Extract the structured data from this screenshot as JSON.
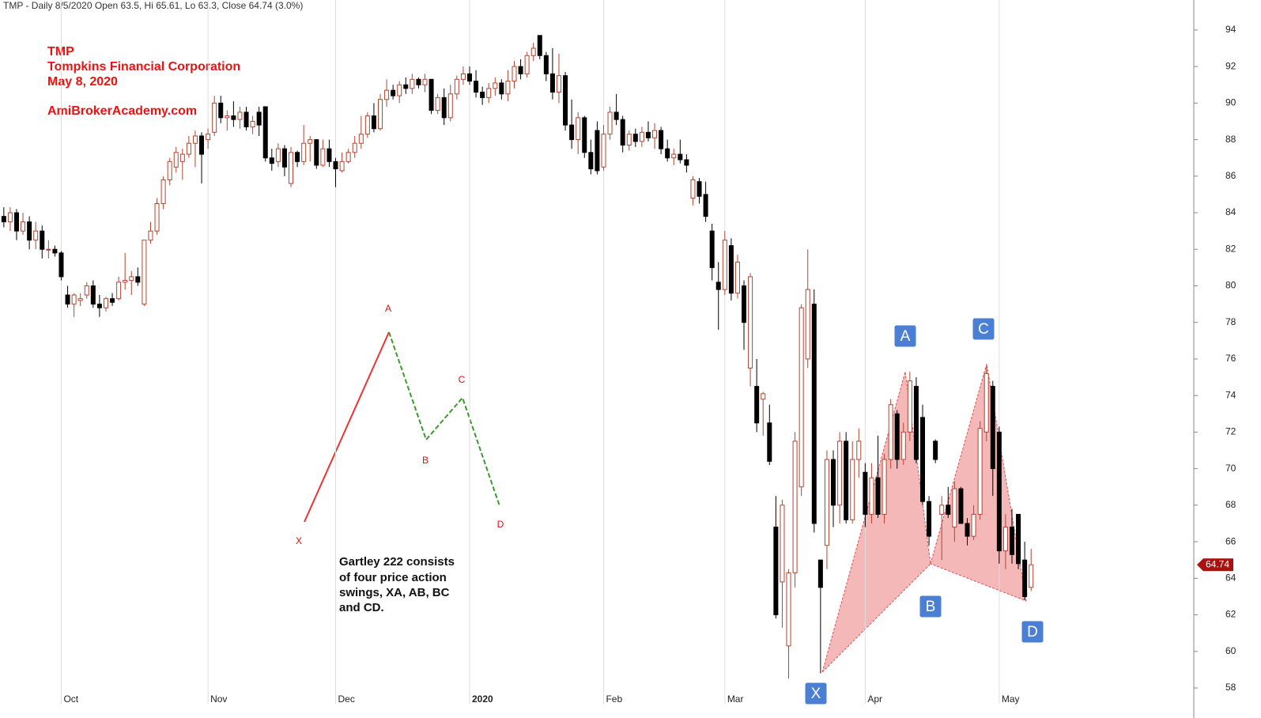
{
  "chart_data": {
    "type": "candlestick",
    "title": "TMP - Daily 8/5/2020 Open 63.5, Hi 65.61, Lo 63.3, Close 64.74 (3.0%)",
    "up_color": "#b4442f",
    "down_color": "#000000",
    "xlim": [
      -0.6,
      186.5
    ],
    "ylim": [
      57.74,
      95.64
    ],
    "yticks": [
      58,
      60,
      62,
      64,
      66,
      68,
      70,
      72,
      74,
      76,
      78,
      80,
      82,
      84,
      86,
      88,
      90,
      92,
      94
    ],
    "xticks": [
      {
        "value": 9,
        "label": "Oct"
      },
      {
        "value": 32,
        "label": "Nov"
      },
      {
        "value": 52,
        "label": "Dec"
      },
      {
        "value": 73,
        "label": "2020"
      },
      {
        "value": 94,
        "label": "Feb"
      },
      {
        "value": 113,
        "label": "Mar"
      },
      {
        "value": 135,
        "label": "Apr"
      },
      {
        "value": 156,
        "label": "May"
      }
    ],
    "header": [
      "TMP",
      "Tompkins Financial Corporation",
      "May 8, 2020",
      "AmiBrokerAcademy.com"
    ],
    "note": [
      "Gartley 222 consists",
      "of four price action",
      "swings, XA, AB, BC",
      "and CD."
    ],
    "diagram_points": [
      "X",
      "A",
      "B",
      "C",
      "D"
    ],
    "pattern_points": [
      "X",
      "A",
      "B",
      "C",
      "D"
    ],
    "candles": [
      [
        83.8,
        84.3,
        83.2,
        83.5
      ],
      [
        83.5,
        84.3,
        83,
        84
      ],
      [
        84,
        84.2,
        82.5,
        83
      ],
      [
        83,
        84,
        82.8,
        83.5
      ],
      [
        83.5,
        83.8,
        82,
        82.5
      ],
      [
        82.5,
        83.5,
        82,
        83
      ],
      [
        83,
        83.3,
        81.5,
        82
      ],
      [
        82,
        82.5,
        81.5,
        82
      ],
      [
        82,
        82.2,
        81.6,
        81.8
      ],
      [
        81.8,
        81.9,
        80.3,
        80.5
      ],
      [
        79.5,
        80,
        78.8,
        79
      ],
      [
        79,
        79.6,
        78.3,
        79.5
      ],
      [
        79.2,
        79.6,
        78.9,
        79.3
      ],
      [
        79.5,
        80.2,
        79.3,
        80
      ],
      [
        80,
        80.3,
        78.8,
        79
      ],
      [
        79,
        79.5,
        78.3,
        78.8
      ],
      [
        78.8,
        79.4,
        78.6,
        79.3
      ],
      [
        79.3,
        79.6,
        78.9,
        79.1
      ],
      [
        79.3,
        80.5,
        79.2,
        80.2
      ],
      [
        80.2,
        81.8,
        79.8,
        80.3
      ],
      [
        80.3,
        80.8,
        79.5,
        80.5
      ],
      [
        80.5,
        81,
        80,
        80.2
      ],
      [
        79,
        82.5,
        78.9,
        82.5
      ],
      [
        82.5,
        83.5,
        82.3,
        83
      ],
      [
        83,
        84.8,
        82.8,
        84.5
      ],
      [
        84.5,
        86,
        84.2,
        85.8
      ],
      [
        85.8,
        87,
        85.5,
        86.8
      ],
      [
        86.5,
        87.6,
        86.2,
        87.3
      ],
      [
        86.8,
        87.5,
        85.8,
        87.2
      ],
      [
        87.2,
        88.2,
        87,
        87.8
      ],
      [
        87.8,
        88.5,
        86.5,
        88.2
      ],
      [
        88.2,
        88.4,
        85.6,
        87.2
      ],
      [
        88,
        88.6,
        87.5,
        88.3
      ],
      [
        88.4,
        90.4,
        88.2,
        90
      ],
      [
        90,
        90.4,
        88.9,
        89.2
      ],
      [
        89.2,
        89.6,
        88.5,
        89.3
      ],
      [
        89.3,
        90.1,
        88.7,
        89.1
      ],
      [
        89.1,
        89.8,
        88.6,
        89.5
      ],
      [
        89.5,
        89.8,
        88.5,
        88.7
      ],
      [
        88.7,
        89.3,
        88.3,
        89
      ],
      [
        89.5,
        89.8,
        88.2,
        88.8
      ],
      [
        89.8,
        89.8,
        86.8,
        87
      ],
      [
        87,
        87.5,
        86.3,
        86.7
      ],
      [
        86.8,
        87.8,
        86.5,
        87.5
      ],
      [
        87.5,
        87.7,
        86,
        86.5
      ],
      [
        85.6,
        87.6,
        85.4,
        87.3
      ],
      [
        87.3,
        87.4,
        86.5,
        86.8
      ],
      [
        86.8,
        88.8,
        86.6,
        87.8
      ],
      [
        87.8,
        88.2,
        86.8,
        88
      ],
      [
        88,
        88,
        86.4,
        86.6
      ],
      [
        86.6,
        88,
        86.5,
        87.5
      ],
      [
        87.5,
        88,
        86.5,
        86.8
      ],
      [
        86.8,
        87,
        85.4,
        86.4
      ],
      [
        86.3,
        87.3,
        86.2,
        86.8
      ],
      [
        86.8,
        87.5,
        86.7,
        87.3
      ],
      [
        87.3,
        88.2,
        87,
        87.8
      ],
      [
        87.8,
        89.3,
        87.5,
        88.3
      ],
      [
        88.3,
        89.5,
        88.1,
        89.3
      ],
      [
        89.3,
        90,
        88.4,
        88.6
      ],
      [
        88.6,
        90.5,
        88.5,
        90.2
      ],
      [
        90.2,
        91.3,
        89.8,
        90.7
      ],
      [
        90.7,
        91,
        90.2,
        90.4
      ],
      [
        90.4,
        91.2,
        90,
        91
      ],
      [
        91,
        91.4,
        90.5,
        90.8
      ],
      [
        90.8,
        91.6,
        90.5,
        91.3
      ],
      [
        91.3,
        91.4,
        90.8,
        91
      ],
      [
        91,
        91.6,
        90.6,
        91.3
      ],
      [
        91.3,
        91.3,
        89.4,
        89.6
      ],
      [
        89.6,
        90.5,
        89.4,
        90.3
      ],
      [
        90.3,
        90.8,
        88.8,
        89.2
      ],
      [
        89.2,
        91,
        89,
        90.5
      ],
      [
        90.5,
        91.5,
        90.2,
        91.3
      ],
      [
        91.3,
        92,
        91,
        91.6
      ],
      [
        91.6,
        92,
        91,
        91.2
      ],
      [
        91.2,
        91.8,
        90.3,
        90.6
      ],
      [
        90.6,
        90.9,
        89.9,
        90.3
      ],
      [
        90.3,
        91.1,
        90,
        90.8
      ],
      [
        90.8,
        91.4,
        90.4,
        91.1
      ],
      [
        91.1,
        91.3,
        90.2,
        90.5
      ],
      [
        90.5,
        91.8,
        90.1,
        91.2
      ],
      [
        91.2,
        92.3,
        90.8,
        92
      ],
      [
        92,
        92.4,
        91.3,
        91.6
      ],
      [
        91.6,
        92.8,
        91.4,
        92.6
      ],
      [
        92.6,
        93.3,
        92.3,
        93
      ],
      [
        93.7,
        93.7,
        92.4,
        92.6
      ],
      [
        92.6,
        92.8,
        91.2,
        91.6
      ],
      [
        91.6,
        93,
        90.2,
        90.6
      ],
      [
        90.6,
        92.7,
        90,
        91.5
      ],
      [
        91.5,
        91.7,
        88.5,
        88.8
      ],
      [
        88.8,
        90.2,
        87.5,
        88
      ],
      [
        88,
        89.5,
        87.2,
        89.2
      ],
      [
        89.2,
        89.3,
        87,
        87.3
      ],
      [
        87.3,
        88,
        86.1,
        86.4
      ],
      [
        88.5,
        89,
        86.1,
        86.3
      ],
      [
        86.5,
        88.8,
        86.3,
        88.3
      ],
      [
        88.3,
        89.8,
        88,
        89.5
      ],
      [
        89.5,
        90.5,
        88.8,
        89.1
      ],
      [
        89.1,
        89.3,
        87.3,
        87.7
      ],
      [
        87.7,
        88.5,
        87.4,
        88.3
      ],
      [
        88.3,
        88.6,
        87.6,
        87.9
      ],
      [
        87.9,
        88.7,
        87.6,
        88.4
      ],
      [
        88.4,
        89,
        87.9,
        88.1
      ],
      [
        88.1,
        88.9,
        87.5,
        88.5
      ],
      [
        88.5,
        88.7,
        87.2,
        87.5
      ],
      [
        87.5,
        88,
        86.8,
        87
      ],
      [
        87,
        87.5,
        86.6,
        87.2
      ],
      [
        87.2,
        88,
        86.7,
        86.9
      ],
      [
        86.9,
        87.2,
        86.2,
        86.6
      ],
      [
        84.8,
        86,
        84.4,
        85.8
      ],
      [
        85.7,
        85.9,
        84.5,
        84.9
      ],
      [
        85,
        85.7,
        83.5,
        83.8
      ],
      [
        83,
        83.4,
        80.3,
        81
      ],
      [
        80.2,
        81.3,
        77.6,
        79.8
      ],
      [
        79.8,
        83,
        79.5,
        82.5
      ],
      [
        82.2,
        82.6,
        79.2,
        79.6
      ],
      [
        79.6,
        81.7,
        79.3,
        81.3
      ],
      [
        80,
        80.3,
        76.5,
        78
      ],
      [
        75.5,
        80.7,
        74.5,
        80.5
      ],
      [
        74.5,
        76,
        72,
        72.5
      ],
      [
        73.8,
        74.2,
        71.8,
        74.1
      ],
      [
        72.5,
        73.5,
        70.2,
        70.4
      ],
      [
        66.8,
        68.5,
        61.8,
        62
      ],
      [
        63.8,
        68.3,
        61.3,
        68
      ],
      [
        60.3,
        64.5,
        58.5,
        64.3
      ],
      [
        64.3,
        72,
        63.5,
        71.5
      ],
      [
        69,
        79,
        68.5,
        78.8
      ],
      [
        76,
        82,
        75.5,
        79.8
      ],
      [
        79,
        79.8,
        66.5,
        67
      ],
      [
        65,
        65,
        58.8,
        63.5
      ],
      [
        65.8,
        71,
        64.5,
        70.5
      ],
      [
        70.5,
        71,
        66.8,
        68
      ],
      [
        68,
        72,
        67,
        71.5
      ],
      [
        71.5,
        72,
        67,
        67.2
      ],
      [
        67.2,
        71.5,
        67,
        70.5
      ],
      [
        70.5,
        72.2,
        69.5,
        71.5
      ],
      [
        69.8,
        70.3,
        66.8,
        67.5
      ],
      [
        67.5,
        70.3,
        67,
        69.5
      ],
      [
        69.5,
        71.8,
        67.3,
        67.5
      ],
      [
        67.5,
        70.8,
        67,
        70.5
      ],
      [
        70.5,
        73.8,
        70,
        73.5
      ],
      [
        73,
        73.2,
        70,
        70.5
      ],
      [
        70.5,
        72.5,
        70.2,
        72
      ],
      [
        72,
        75.3,
        71.5,
        74.8
      ],
      [
        74.5,
        75,
        70.3,
        70.5
      ],
      [
        72.8,
        73.5,
        68,
        68.2
      ],
      [
        68.2,
        68.5,
        65.8,
        66.3
      ],
      [
        71.5,
        71.6,
        70.3,
        70.5
      ],
      [
        67.5,
        68.5,
        65,
        68
      ],
      [
        68,
        69,
        67.3,
        67.5
      ],
      [
        66.8,
        69.3,
        66,
        68.9
      ],
      [
        68.9,
        69,
        67,
        67
      ],
      [
        67,
        67.3,
        65.8,
        66.3
      ],
      [
        66.3,
        68,
        66.1,
        67.5
      ],
      [
        67.5,
        72.6,
        67.2,
        72.2
      ],
      [
        72,
        75.6,
        71.5,
        75.2
      ],
      [
        74.5,
        74.8,
        68.5,
        70
      ],
      [
        72,
        72.3,
        64.8,
        65.5
      ],
      [
        65.5,
        67.5,
        64.5,
        66.8
      ],
      [
        66.8,
        67.8,
        64.8,
        65.3
      ],
      [
        67.5,
        67.5,
        64.5,
        64.8
      ],
      [
        65,
        66,
        62.8,
        63
      ],
      [
        63.5,
        65.61,
        63.3,
        64.74
      ]
    ]
  }
}
